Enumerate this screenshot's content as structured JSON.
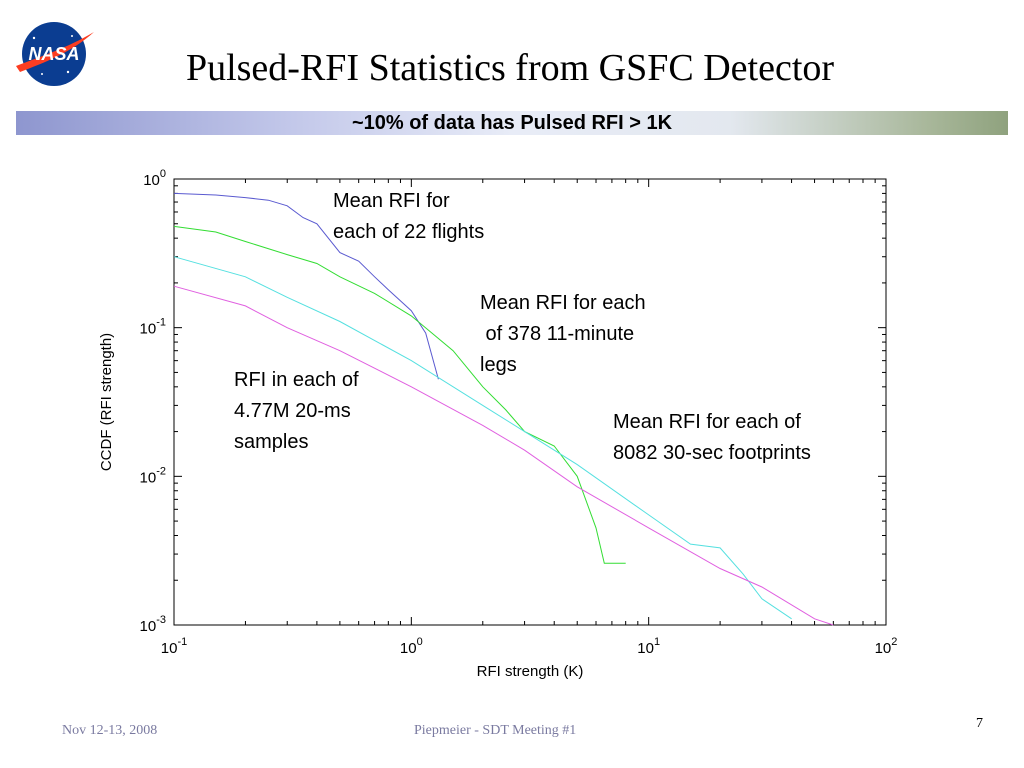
{
  "slide": {
    "title": "Pulsed-RFI Statistics from GSFC Detector",
    "banner": "~10% of data has Pulsed RFI > 1K",
    "logo_text": "NASA",
    "footer_left": "Nov 12-13, 2008",
    "footer_center": "Piepmeier - SDT Meeting #1",
    "page_number": "7"
  },
  "colors": {
    "nasa_blue": "#0b3d91",
    "nasa_red": "#fc3d21",
    "footer_text": "#7a7aa0"
  },
  "chart_data": {
    "type": "line",
    "xscale": "log",
    "yscale": "log",
    "xlim": [
      0.1,
      100
    ],
    "ylim": [
      0.001,
      1
    ],
    "xlabel": "RFI strength (K)",
    "ylabel": "CCDF (RFI strength)",
    "x_ticks": [
      {
        "value": 0.1,
        "base": "10",
        "exp": "-1"
      },
      {
        "value": 1,
        "base": "10",
        "exp": "0"
      },
      {
        "value": 10,
        "base": "10",
        "exp": "1"
      },
      {
        "value": 100,
        "base": "10",
        "exp": "2"
      }
    ],
    "y_ticks": [
      {
        "value": 1,
        "base": "10",
        "exp": "0"
      },
      {
        "value": 0.1,
        "base": "10",
        "exp": "-1"
      },
      {
        "value": 0.01,
        "base": "10",
        "exp": "-2"
      },
      {
        "value": 0.001,
        "base": "10",
        "exp": "-3"
      }
    ],
    "grid": false,
    "series": [
      {
        "color": "#5a5ad0",
        "x": [
          0.1,
          0.15,
          0.2,
          0.25,
          0.3,
          0.35,
          0.4,
          0.5,
          0.6,
          0.7,
          0.8,
          1.0,
          1.15,
          1.3
        ],
        "y": [
          0.8,
          0.78,
          0.75,
          0.72,
          0.66,
          0.55,
          0.5,
          0.32,
          0.28,
          0.22,
          0.18,
          0.13,
          0.092,
          0.045
        ]
      },
      {
        "color": "#33dd33",
        "x": [
          0.1,
          0.15,
          0.2,
          0.3,
          0.4,
          0.5,
          0.7,
          1.0,
          1.5,
          2.0,
          2.5,
          3.0,
          4.0,
          5.0,
          6.0,
          6.5,
          8.0
        ],
        "y": [
          0.48,
          0.44,
          0.38,
          0.31,
          0.27,
          0.22,
          0.17,
          0.12,
          0.07,
          0.04,
          0.028,
          0.02,
          0.016,
          0.01,
          0.0045,
          0.0026,
          0.0026
        ]
      },
      {
        "color": "#55e0e0",
        "x": [
          0.1,
          0.2,
          0.3,
          0.5,
          1.0,
          2.0,
          3.0,
          5.0,
          10.0,
          15.0,
          20.0,
          25.0,
          30.0,
          40.0
        ],
        "y": [
          0.3,
          0.22,
          0.16,
          0.11,
          0.06,
          0.03,
          0.02,
          0.012,
          0.0055,
          0.0035,
          0.0033,
          0.0022,
          0.0015,
          0.0011
        ]
      },
      {
        "color": "#e060e0",
        "x": [
          0.1,
          0.2,
          0.3,
          0.5,
          1.0,
          2.0,
          3.0,
          5.0,
          10.0,
          20.0,
          30.0,
          50.0,
          60.0
        ],
        "y": [
          0.19,
          0.14,
          0.1,
          0.07,
          0.04,
          0.022,
          0.015,
          0.0085,
          0.0045,
          0.0024,
          0.0018,
          0.0011,
          0.001
        ]
      }
    ],
    "annotations": [
      {
        "name": "flights",
        "lines": [
          "Mean RFI for",
          "each of 22 flights"
        ]
      },
      {
        "name": "legs",
        "lines": [
          "Mean RFI for each",
          " of 378 11-minute",
          "legs"
        ]
      },
      {
        "name": "samples",
        "lines": [
          "RFI in each of",
          "4.77M 20-ms",
          "samples"
        ]
      },
      {
        "name": "footprints",
        "lines": [
          "Mean RFI for each of",
          "8082 30-sec footprints"
        ]
      }
    ]
  }
}
